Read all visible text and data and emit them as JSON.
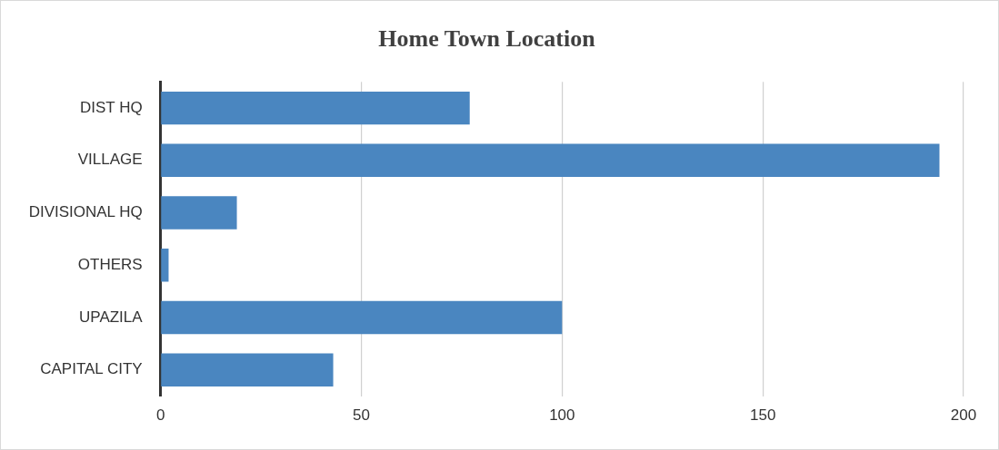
{
  "chart_data": {
    "type": "bar",
    "orientation": "horizontal",
    "title": "Home Town Location",
    "categories": [
      "DIST HQ",
      "VILLAGE",
      "DIVISIONAL HQ",
      "OTHERS",
      "UPAZILA",
      "CAPITAL CITY"
    ],
    "values": [
      77,
      194,
      19,
      2,
      100,
      43
    ],
    "color": "#4a86c0",
    "xlim": [
      0,
      200
    ],
    "xticks": [
      0,
      50,
      100,
      150,
      200
    ],
    "grid": "x",
    "legend": false
  }
}
